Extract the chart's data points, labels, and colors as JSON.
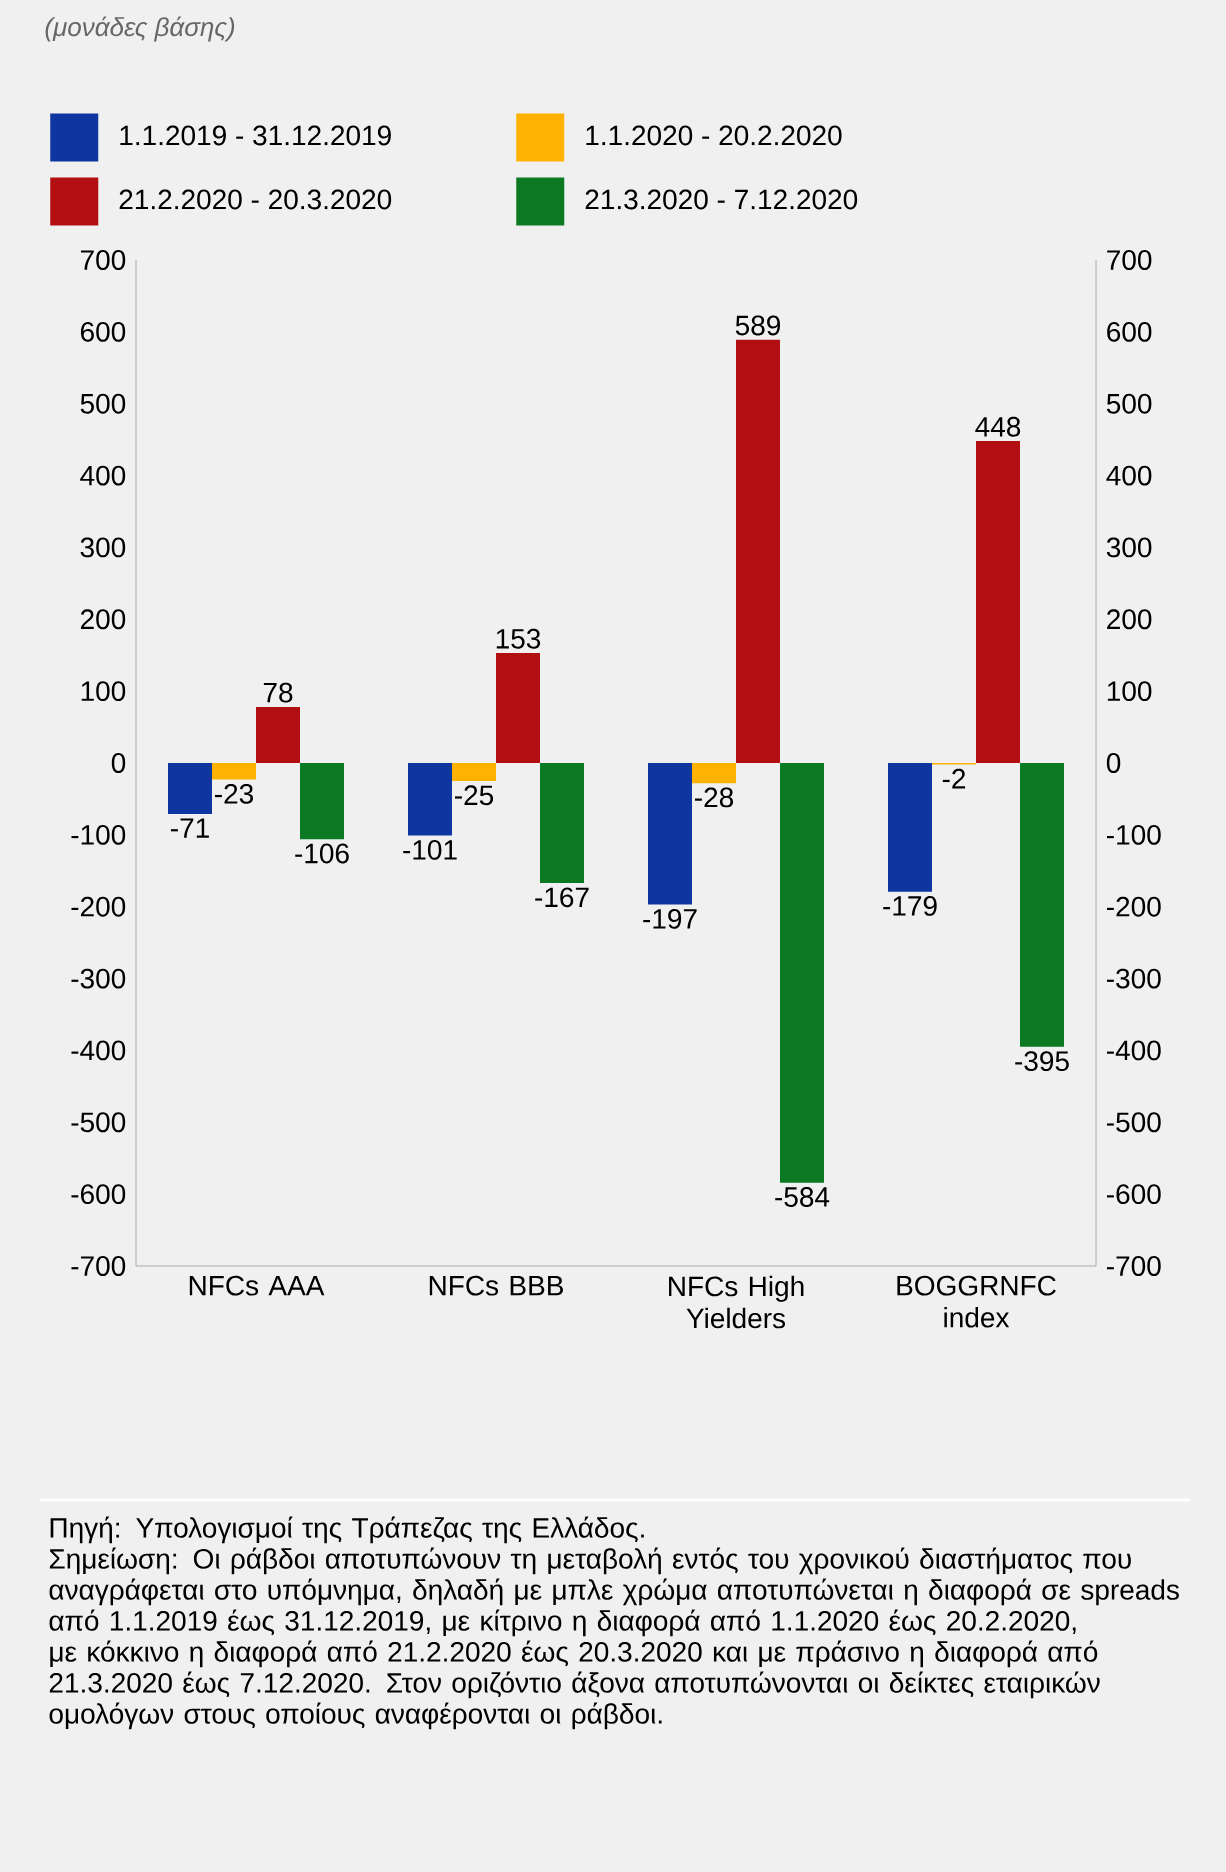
{
  "chart_data": {
    "type": "bar",
    "categories": [
      "NFCs AAA",
      "NFCs BBB",
      "NFCs High Yielders",
      "BOGGRNFC index"
    ],
    "series": [
      {
        "name": "1.1.2019 - 31.12.2019",
        "color": "#0f36a0",
        "values": [
          -71,
          -101,
          -197,
          -179
        ]
      },
      {
        "name": "1.1.2020 - 20.2.2020",
        "color": "#ffb300",
        "values": [
          -23,
          -25,
          -28,
          -2
        ]
      },
      {
        "name": "21.2.2020 - 20.3.2020",
        "color": "#b30f12",
        "values": [
          78,
          153,
          589,
          448
        ]
      },
      {
        "name": "21.3.2020 - 7.12.2020",
        "color": "#0c7a22",
        "values": [
          -106,
          -167,
          -584,
          -395
        ]
      }
    ],
    "ylim": [
      -700,
      700
    ],
    "yticks": [
      -700,
      -600,
      -500,
      -400,
      -300,
      -200,
      -100,
      0,
      100,
      200,
      300,
      400,
      500,
      600,
      700
    ],
    "y2lim": [
      -700,
      700
    ],
    "y2ticks": [
      -700,
      -600,
      -500,
      -400,
      -300,
      -200,
      -100,
      0,
      100,
      200,
      300,
      400,
      500,
      600,
      700
    ],
    "data_labels": true,
    "legend": "top",
    "grid": false,
    "annotations": [
      "(μονάδες βάσης)",
      "Πηγή: Υπολογισμοί της Τράπεζας της Ελλάδος.",
      "Σημείωση: Οι ράβδοι αποτυπώνουν τη μεταβολή εντός του χρονικού διαστήματος που αναγράφεται στο υπόμνημα, δηλαδή με μπλε χρώμα αποτυπώνεται η διαφορά σε spreads από 1.1.2019 έως 31.12.2019, με κίτρινο η διαφορά από 1.1.2020 έως 20.2.2020, με κόκκινο η διαφορά από 21.2.2020 έως 20.3.2020 και με πράσινο η διαφορά από 21.3.2020 έως 7.12.2020. Στον οριζόντιο άξονα αποτυπώνονται οι δείκτες εταιρικών ομολόγων στους οποίους αναφέρονται οι ράβδοι."
    ]
  }
}
